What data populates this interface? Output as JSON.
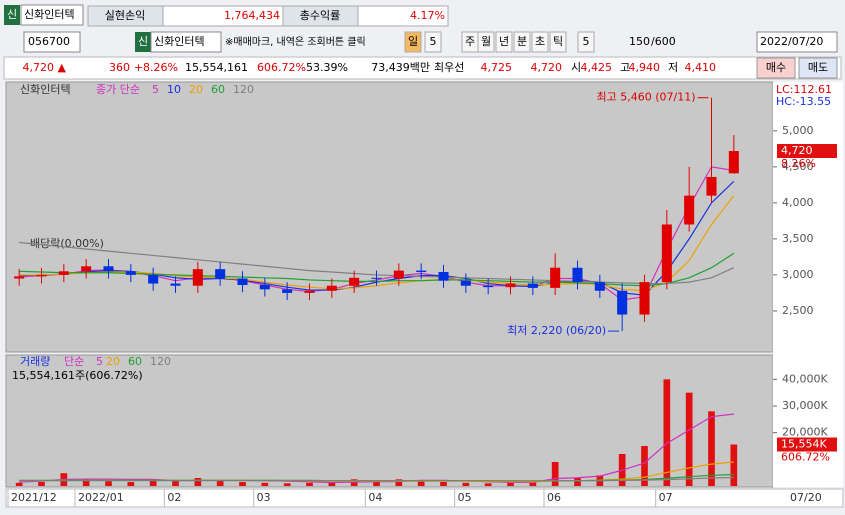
{
  "toolbar": {
    "badge": "신",
    "stock": "신화인터텍",
    "pnl_label": "실현손익",
    "pnl": "1,764,434",
    "ret_label": "총수익률",
    "ret": "4.17%",
    "code": "056700",
    "stock2": "신화인터텍",
    "note": "※매매마크, 내역은 조회버튼 클릭",
    "periods": [
      "일",
      "5",
      "주",
      "월",
      "년",
      "분",
      "초",
      "틱",
      "5"
    ],
    "count": "150",
    "max": "/600",
    "date": "2022/07/20"
  },
  "quote": [
    "4,720 ▲",
    "360",
    "+8.26%",
    "15,554,161",
    "606.72%",
    "53.39%",
    "73,439백만",
    "최우선",
    "4,725",
    "4,720",
    "시",
    "4,425",
    "고",
    "4,940",
    "저",
    "4,410"
  ],
  "buttons": [
    "매수",
    "매도"
  ],
  "chart_data": {
    "type": "candlestick",
    "title": "신화인터텍",
    "ma_label": "종가 단순",
    "lc": "LC:112.61",
    "hc": "HC:-13.55",
    "categories": [
      "2021/12",
      null,
      null,
      "2022/01",
      null,
      null,
      null,
      "02",
      null,
      null,
      null,
      "03",
      null,
      null,
      null,
      null,
      "04",
      null,
      null,
      null,
      "05",
      null,
      null,
      null,
      "06",
      null,
      null,
      null,
      null,
      "07",
      null,
      null,
      null
    ],
    "end_label": "07/20",
    "open": [
      2950,
      2980,
      3000,
      3050,
      3120,
      3050,
      3000,
      2880,
      2850,
      3080,
      2950,
      2860,
      2800,
      2750,
      2780,
      2850,
      2960,
      2950,
      3060,
      3040,
      2920,
      2850,
      2830,
      2880,
      2820,
      3100,
      2900,
      2780,
      2450,
      2900,
      3700,
      4100,
      4410
    ],
    "high": [
      3080,
      3100,
      3150,
      3220,
      3220,
      3150,
      3100,
      2980,
      3180,
      3180,
      3050,
      2960,
      2900,
      2880,
      2950,
      3060,
      3060,
      3160,
      3160,
      3140,
      3020,
      2950,
      2980,
      2980,
      3300,
      3200,
      3000,
      2880,
      3000,
      3900,
      4500,
      5460,
      4940
    ],
    "low": [
      2850,
      2880,
      2900,
      2950,
      2950,
      2900,
      2780,
      2750,
      2750,
      2850,
      2760,
      2700,
      2650,
      2650,
      2680,
      2750,
      2850,
      2850,
      2940,
      2820,
      2750,
      2730,
      2730,
      2720,
      2720,
      2800,
      2680,
      2220,
      2350,
      2800,
      3600,
      4000,
      4410
    ],
    "close": [
      2980,
      3000,
      3050,
      3120,
      3050,
      3000,
      2880,
      2850,
      3080,
      2950,
      2860,
      2800,
      2750,
      2780,
      2850,
      2960,
      2950,
      3060,
      3040,
      2920,
      2850,
      2830,
      2880,
      2820,
      3100,
      2900,
      2780,
      2450,
      2900,
      3700,
      4100,
      4360,
      4720
    ],
    "series": [
      {
        "name": "5",
        "color": "#d030c0",
        "values": [
          2970,
          2990,
          3010,
          3060,
          3070,
          3040,
          2990,
          2920,
          2960,
          2960,
          2920,
          2860,
          2800,
          2770,
          2800,
          2880,
          2930,
          2990,
          3020,
          2980,
          2900,
          2850,
          2850,
          2840,
          2950,
          2950,
          2880,
          2650,
          2700,
          3350,
          3950,
          4500,
          4450
        ]
      },
      {
        "name": "10",
        "color": "#1830e0",
        "values": [
          2990,
          3000,
          3010,
          3040,
          3060,
          3050,
          3010,
          2960,
          2940,
          2950,
          2930,
          2880,
          2830,
          2790,
          2790,
          2830,
          2900,
          2950,
          2990,
          2990,
          2950,
          2880,
          2850,
          2840,
          2890,
          2920,
          2900,
          2750,
          2720,
          3050,
          3500,
          4000,
          4300
        ]
      },
      {
        "name": "20",
        "color": "#f0a000",
        "values": [
          3000,
          3000,
          3010,
          3030,
          3040,
          3040,
          3020,
          2990,
          2970,
          2960,
          2940,
          2900,
          2860,
          2830,
          2810,
          2820,
          2850,
          2890,
          2920,
          2940,
          2930,
          2900,
          2880,
          2860,
          2870,
          2880,
          2870,
          2800,
          2780,
          2900,
          3200,
          3700,
          4100
        ]
      },
      {
        "name": "60",
        "color": "#20a030",
        "values": [
          3050,
          3040,
          3030,
          3030,
          3030,
          3020,
          3010,
          3000,
          2990,
          2980,
          2970,
          2960,
          2950,
          2930,
          2920,
          2910,
          2910,
          2920,
          2920,
          2930,
          2930,
          2920,
          2910,
          2900,
          2900,
          2890,
          2880,
          2860,
          2850,
          2880,
          2960,
          3100,
          3300
        ]
      },
      {
        "name": "120",
        "color": "#808080",
        "values": [
          3450,
          3420,
          3390,
          3360,
          3330,
          3300,
          3270,
          3240,
          3210,
          3180,
          3150,
          3120,
          3090,
          3060,
          3040,
          3020,
          3000,
          2990,
          2980,
          2970,
          2960,
          2950,
          2940,
          2930,
          2920,
          2910,
          2900,
          2890,
          2880,
          2880,
          2900,
          2960,
          3100
        ]
      }
    ],
    "ylim": [
      1930,
      5650
    ],
    "yticks": [
      {
        "value": 2500,
        "label": "2,500"
      },
      {
        "value": 3000,
        "label": "3,000"
      },
      {
        "value": 3500,
        "label": "3,500"
      },
      {
        "value": 4000,
        "label": "4,000"
      },
      {
        "value": 4500,
        "label": "4,500"
      },
      {
        "value": 5000,
        "label": "5,000"
      }
    ],
    "last": {
      "value": 4720,
      "label": "4,720",
      "change": "8.26%"
    },
    "annotations": {
      "high": "최고 5,460 (07/11)",
      "low": "최저 2,220 (06/20)",
      "dividend": "배당락(0.00%)"
    },
    "volume": {
      "title": "거래량",
      "ma_label": "단순",
      "info": "15,554,161주(606.72%)",
      "color": "#e01010",
      "values": [
        1200,
        1500,
        4800,
        2500,
        1800,
        1500,
        2000,
        2200,
        3000,
        2000,
        1500,
        1200,
        1000,
        1200,
        1500,
        2500,
        1800,
        2500,
        2000,
        1500,
        1200,
        1000,
        1200,
        1500,
        9000,
        3000,
        4000,
        12000,
        15000,
        40000,
        35000,
        28000,
        15554
      ],
      "series": [
        {
          "name": "5",
          "color": "#d030c0",
          "values": [
            1500,
            1800,
            2500,
            2600,
            2600,
            2500,
            2500,
            2000,
            2100,
            2100,
            2100,
            2000,
            1800,
            1600,
            1300,
            1500,
            1600,
            1700,
            2100,
            2100,
            1900,
            1600,
            1400,
            1300,
            2800,
            3100,
            3700,
            5900,
            8600,
            16000,
            21000,
            26000,
            27000
          ]
        },
        {
          "name": "20",
          "color": "#f0a000",
          "values": [
            2000,
            2000,
            2100,
            2100,
            2100,
            2100,
            2100,
            2100,
            2100,
            2100,
            2100,
            2100,
            2000,
            1900,
            1800,
            1800,
            1800,
            1800,
            1800,
            1800,
            1800,
            1700,
            1700,
            1600,
            1900,
            2000,
            2200,
            2600,
            3300,
            5100,
            6800,
            8200,
            9000
          ]
        },
        {
          "name": "60",
          "color": "#20a030",
          "values": [
            2100,
            2100,
            2100,
            2100,
            2100,
            2100,
            2100,
            2100,
            2100,
            2100,
            2100,
            2100,
            2100,
            2100,
            2000,
            2000,
            2000,
            2000,
            2000,
            2000,
            2000,
            2000,
            1900,
            1900,
            2000,
            2000,
            2100,
            2200,
            2400,
            2900,
            3500,
            4000,
            4300
          ]
        },
        {
          "name": "120",
          "color": "#808080",
          "values": [
            2000,
            2000,
            2000,
            2000,
            2000,
            2000,
            2000,
            2000,
            2000,
            2000,
            2000,
            2000,
            2000,
            2000,
            2000,
            2000,
            2000,
            2000,
            2000,
            2000,
            2000,
            2000,
            2000,
            2000,
            2000,
            2000,
            2000,
            2100,
            2200,
            2400,
            2700,
            3000,
            3200
          ]
        }
      ],
      "ylim": [
        0,
        46500
      ],
      "yticks": [
        {
          "value": 20000,
          "label": "20,000K"
        },
        {
          "value": 30000,
          "label": "30,000K"
        },
        {
          "value": 40000,
          "label": "40,000K"
        }
      ],
      "last": {
        "value": 15554,
        "label": "15,554K",
        "change": "606.72%"
      }
    }
  }
}
